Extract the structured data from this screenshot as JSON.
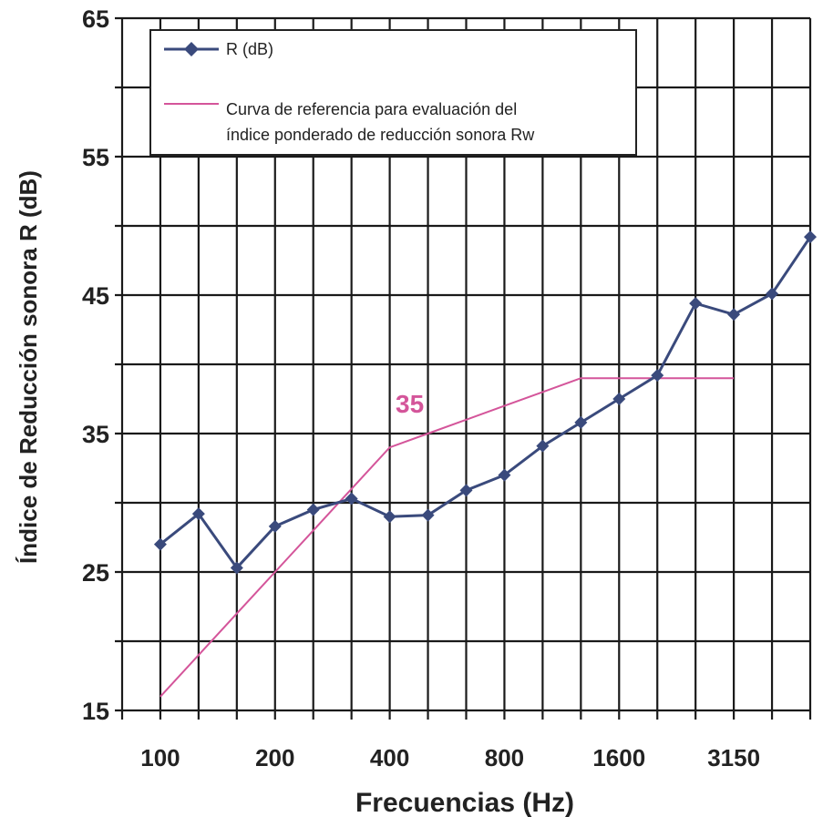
{
  "chart_data": {
    "type": "line",
    "xlabel": "Frecuencias (Hz)",
    "ylabel": "Índice de Reducción sonora R (dB)",
    "ylim": [
      15,
      65
    ],
    "y_ticks": [
      15,
      25,
      35,
      45,
      55,
      65
    ],
    "x": [
      "100",
      "125",
      "160",
      "200",
      "250",
      "315",
      "400",
      "500",
      "630",
      "800",
      "1000",
      "1250",
      "1600",
      "2000",
      "2500",
      "3150",
      "4000",
      "5000"
    ],
    "x_tick_labels": [
      "100",
      "200",
      "400",
      "800",
      "1600",
      "3150"
    ],
    "grid": true,
    "legend_position": "top-left",
    "series": [
      {
        "name": "R (dB)",
        "color": "#3a4a7c",
        "marker": "diamond",
        "values": [
          27,
          29.2,
          25.3,
          28.3,
          29.5,
          30.3,
          29,
          29.1,
          30.9,
          32,
          34.1,
          35.8,
          37.5,
          39.2,
          44.4,
          43.6,
          45.1,
          49.2
        ]
      },
      {
        "name": "Curva de referencia para evaluación del índice ponderado de reducción sonora Rw",
        "name_lines": [
          "Curva de referencia para evaluación del",
          "índice ponderado de reducción sonora Rw"
        ],
        "color": "#d4559a",
        "marker": "none",
        "values": [
          16,
          19,
          22,
          25,
          28,
          31,
          34,
          35,
          36,
          37,
          38,
          39,
          39,
          39,
          39,
          39,
          null,
          null
        ]
      }
    ],
    "annotations": [
      {
        "text": "35",
        "x": "400",
        "y": 36.5,
        "color": "#d4559a"
      }
    ]
  }
}
